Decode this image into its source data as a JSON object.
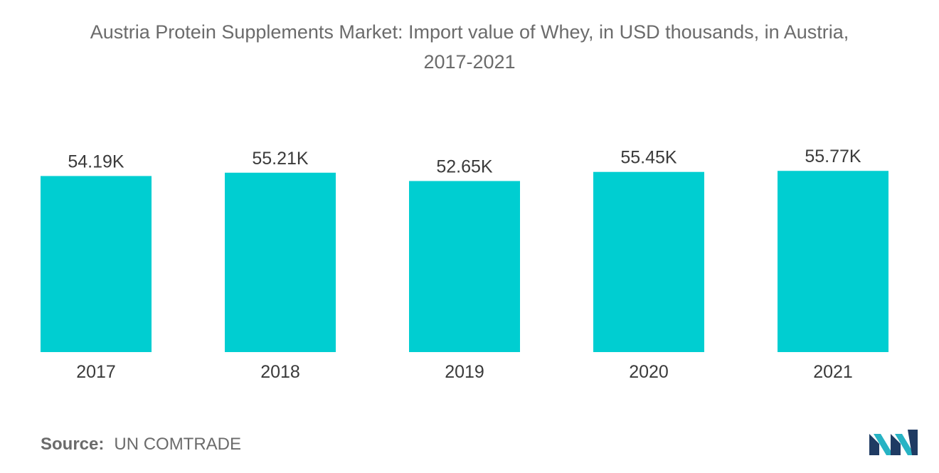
{
  "title": {
    "line1": "Austria Protein Supplements Market: Import value of Whey, in USD thousands, in Austria,",
    "line2": "2017-2021"
  },
  "chart_data": {
    "type": "bar",
    "title": "Austria Protein Supplements Market: Import value of Whey, in USD thousands, in Austria, 2017-2021",
    "categories": [
      "2017",
      "2018",
      "2019",
      "2020",
      "2021"
    ],
    "values": [
      54.19,
      55.21,
      52.65,
      55.45,
      55.77
    ],
    "value_labels": [
      "54.19K",
      "55.21K",
      "52.65K",
      "55.45K",
      "55.77K"
    ],
    "unit": "USD thousands",
    "xlabel": "",
    "ylabel": "",
    "grid": false,
    "legend": "none",
    "colors": {
      "bar": "#00ced1",
      "label": "#3a3a3a",
      "tick": "#3a3a3a"
    }
  },
  "source": {
    "label": "Source:",
    "value": "UN COMTRADE"
  },
  "logo": {
    "icon": "mordor-intelligence-logo",
    "colors": [
      "#1f3b63",
      "#27b3c4"
    ]
  }
}
